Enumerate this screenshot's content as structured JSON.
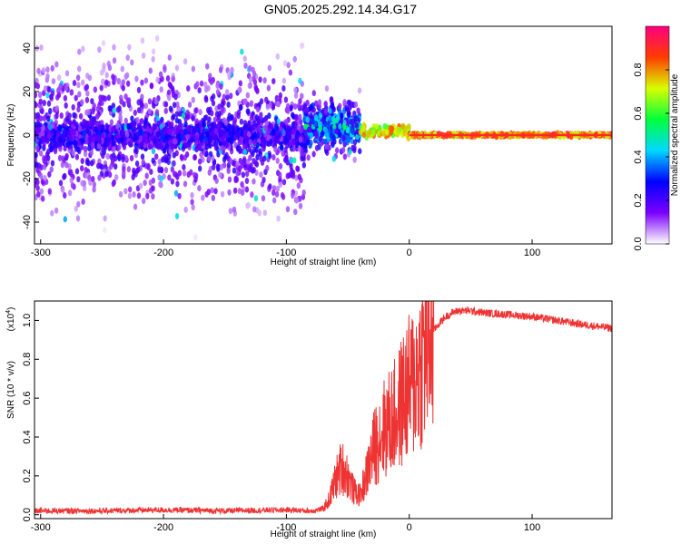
{
  "title": "GN05.2025.292.14.34.G17",
  "chart_data": [
    {
      "type": "heatmap",
      "xlabel": "Height of straight line (km)",
      "ylabel": "Frequency (Hz)",
      "xlim": [
        -305,
        165
      ],
      "ylim": [
        -50,
        50
      ],
      "xticks": [
        -300,
        -200,
        -100,
        0,
        100
      ],
      "yticks": [
        -40,
        -20,
        0,
        20,
        40
      ],
      "grid": false,
      "colorbar": {
        "label": "Normalized spectral amplitude",
        "range": [
          0,
          1
        ],
        "ticks": [
          "0.0",
          "0.2",
          "0.4",
          "0.6",
          "0.8"
        ],
        "colors": [
          "#ffffff",
          "#7b00ff",
          "#0000ff",
          "#00d8ff",
          "#00ff3c",
          "#d8ff00",
          "#ff3c00",
          "#ff0080"
        ]
      },
      "regions": [
        {
          "x": [
            -305,
            -85
          ],
          "frequency_center": 0,
          "frequency_spread": 50,
          "peak_amplitude": 0.25
        },
        {
          "x": [
            -85,
            -40
          ],
          "frequency_center": 4,
          "frequency_spread": 20,
          "peak_amplitude": 0.45
        },
        {
          "x": [
            -40,
            0
          ],
          "frequency_center": 2,
          "frequency_spread": 4,
          "peak_amplitude": 0.8
        },
        {
          "x": [
            0,
            165
          ],
          "frequency_center": 0,
          "frequency_spread": 1,
          "peak_amplitude": 0.9
        }
      ]
    },
    {
      "type": "line",
      "xlabel": "Height of straight line (km)",
      "ylabel": "SNR (10 * v/v)",
      "scale_label": "(x10",
      "scale_exponent": "4",
      "xlim": [
        -305,
        165
      ],
      "ylim": [
        -0.02,
        1.1
      ],
      "xticks": [
        -300,
        -200,
        -100,
        0,
        100
      ],
      "yticks": [
        0.0,
        0.2,
        0.4,
        0.6,
        0.8,
        1.0
      ],
      "grid": false,
      "series": [
        {
          "color": "#ee3333",
          "x": [
            -305,
            -250,
            -200,
            -150,
            -100,
            -80,
            -70,
            -65,
            -60,
            -55,
            -50,
            -45,
            -40,
            -35,
            -30,
            -25,
            -20,
            -15,
            -10,
            -5,
            0,
            5,
            10,
            15,
            20,
            25,
            30,
            35,
            40,
            50,
            60,
            80,
            100,
            120,
            140,
            165
          ],
          "y": [
            0.02,
            0.02,
            0.025,
            0.02,
            0.025,
            0.02,
            0.03,
            0.08,
            0.18,
            0.25,
            0.2,
            0.12,
            0.1,
            0.2,
            0.32,
            0.4,
            0.45,
            0.48,
            0.52,
            0.6,
            0.65,
            0.7,
            0.8,
            0.88,
            0.95,
            0.99,
            1.02,
            1.04,
            1.05,
            1.05,
            1.04,
            1.03,
            1.02,
            1.0,
            0.98,
            0.96
          ]
        }
      ]
    }
  ]
}
